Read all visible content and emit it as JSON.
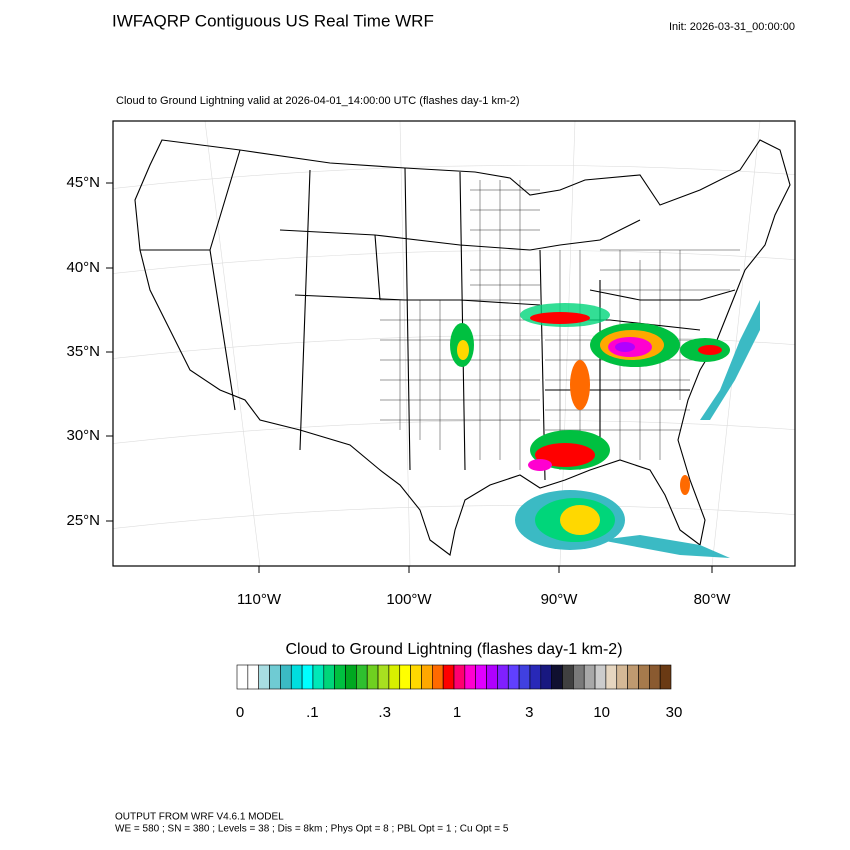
{
  "header": {
    "title": "IWFAQRP Contiguous US Real Time WRF",
    "init": "Init: 2026-03-31_00:00:00"
  },
  "map": {
    "subtitle": "Cloud to Ground Lightning valid at 2026-04-01_14:00:00 UTC   (flashes day-1 km-2)",
    "lat_labels": [
      "45°N",
      "40°N",
      "35°N",
      "30°N",
      "25°N"
    ],
    "lon_labels": [
      "110°W",
      "100°W",
      "90°W",
      "80°W"
    ]
  },
  "colorbar": {
    "title": "Cloud to Ground Lightning  (flashes day-1 km-2)",
    "colors": [
      "#ffffff",
      "#ffffff",
      "#a8dde2",
      "#6fcbd3",
      "#3bbac4",
      "#00dede",
      "#00ffff",
      "#00e8b8",
      "#00d67a",
      "#00c040",
      "#00a820",
      "#2fc02f",
      "#6fd020",
      "#a8e020",
      "#d8f000",
      "#ffff00",
      "#ffd800",
      "#ffa800",
      "#ff6a00",
      "#ff0000",
      "#ff0070",
      "#ff00d0",
      "#e000ff",
      "#b000ff",
      "#8020ff",
      "#6040ff",
      "#4040e0",
      "#2828b8",
      "#181880",
      "#101030",
      "#404040",
      "#7a7a7a",
      "#a8a8a8",
      "#cccccc",
      "#e6d6c0",
      "#d4b896",
      "#bf9a70",
      "#a67a4c",
      "#8a5a30",
      "#6a3a14"
    ],
    "labels": [
      "0",
      ".1",
      ".3",
      "1",
      "3",
      "10",
      "30"
    ]
  },
  "footer": {
    "lines": [
      "OUTPUT FROM WRF V4.6.1 MODEL",
      "WE = 580 ; SN = 380 ; Levels = 38 ; Dis = 8km ; Phys Opt = 8 ; PBL Opt = 1 ; Cu Opt = 5"
    ]
  }
}
